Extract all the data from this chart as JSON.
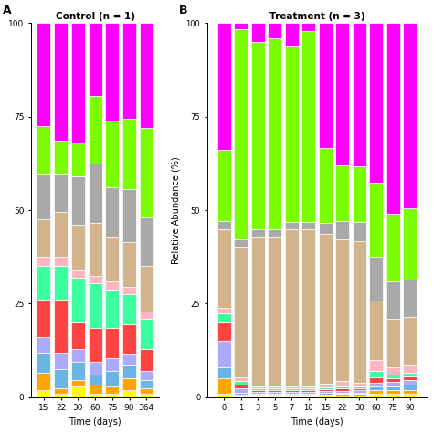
{
  "control_days": [
    15,
    22,
    30,
    60,
    75,
    90,
    364
  ],
  "treatment_days": [
    0,
    1,
    3,
    5,
    7,
    10,
    15,
    22,
    30,
    60,
    75,
    90
  ],
  "colors": [
    "#FFFF00",
    "#FFA500",
    "#6CB4E4",
    "#AAAAFF",
    "#FF4444",
    "#00FA9A",
    "#FFB6C1",
    "#D2B48C",
    "#A9A9A9",
    "#7CFC00",
    "#FF00FF"
  ],
  "control_data_pct": [
    [
      2.0,
      1.0,
      3.0,
      1.0,
      1.0,
      2.0,
      1.0
    ],
    [
      4.5,
      1.5,
      1.5,
      2.5,
      2.0,
      3.0,
      1.5
    ],
    [
      5.5,
      5.0,
      5.0,
      2.5,
      4.0,
      3.5,
      2.0
    ],
    [
      4.0,
      4.5,
      3.5,
      3.5,
      3.5,
      3.0,
      2.5
    ],
    [
      10.0,
      14.0,
      7.0,
      9.0,
      8.0,
      8.0,
      6.0
    ],
    [
      9.0,
      9.0,
      12.0,
      12.0,
      10.0,
      8.0,
      8.0
    ],
    [
      2.5,
      2.5,
      2.0,
      2.0,
      2.5,
      2.0,
      2.0
    ],
    [
      10.0,
      12.0,
      12.0,
      14.0,
      12.0,
      12.0,
      12.0
    ],
    [
      12.0,
      10.0,
      13.0,
      16.0,
      13.0,
      14.0,
      13.0
    ],
    [
      13.0,
      9.0,
      9.0,
      18.0,
      18.0,
      19.0,
      24.0
    ],
    [
      27.5,
      31.5,
      32.0,
      19.5,
      26.0,
      25.5,
      28.0
    ]
  ],
  "treatment_data_pct": [
    [
      1.0,
      0.3,
      0.3,
      0.3,
      0.3,
      0.3,
      0.5,
      0.5,
      0.5,
      1.0,
      1.0,
      1.0
    ],
    [
      4.0,
      0.5,
      0.3,
      0.3,
      0.3,
      0.3,
      0.3,
      0.5,
      0.5,
      1.0,
      1.0,
      1.0
    ],
    [
      3.0,
      0.5,
      0.3,
      0.3,
      0.3,
      0.3,
      0.3,
      0.3,
      0.3,
      1.0,
      1.0,
      1.5
    ],
    [
      7.0,
      1.0,
      0.5,
      0.5,
      0.5,
      0.5,
      0.5,
      0.5,
      0.5,
      1.0,
      1.0,
      1.0
    ],
    [
      5.0,
      1.0,
      0.5,
      0.5,
      0.5,
      0.5,
      0.5,
      0.5,
      0.5,
      1.5,
      1.0,
      1.0
    ],
    [
      2.5,
      1.0,
      0.5,
      0.5,
      0.5,
      0.5,
      0.5,
      0.5,
      0.5,
      1.5,
      1.0,
      1.0
    ],
    [
      1.5,
      1.0,
      0.5,
      0.5,
      0.5,
      0.5,
      1.0,
      1.5,
      1.0,
      3.0,
      2.0,
      2.0
    ],
    [
      21.0,
      35.0,
      40.0,
      40.0,
      42.0,
      42.0,
      40.0,
      38.0,
      38.0,
      16.0,
      13.0,
      13.0
    ],
    [
      2.0,
      2.0,
      2.0,
      2.0,
      2.0,
      2.0,
      3.0,
      5.0,
      5.0,
      12.0,
      10.0,
      10.0
    ],
    [
      19.0,
      56.0,
      50.0,
      51.0,
      47.0,
      51.0,
      20.0,
      15.0,
      15.0,
      20.0,
      18.0,
      19.0
    ],
    [
      34.0,
      1.7,
      5.1,
      4.1,
      6.1,
      2.1,
      33.4,
      38.2,
      38.2,
      43.0,
      51.0,
      49.5
    ]
  ],
  "title_left": "Control (n = 1)",
  "title_right": "Treatment (n = 3)",
  "ylabel": "Relative Abundance (%)",
  "xlabel": "Time (days)",
  "panel_label_left": "A",
  "panel_label_right": "B",
  "ylim": [
    0,
    100
  ],
  "yticks": [
    0,
    25,
    50,
    75,
    100
  ],
  "background_color": "#FFFFFF"
}
